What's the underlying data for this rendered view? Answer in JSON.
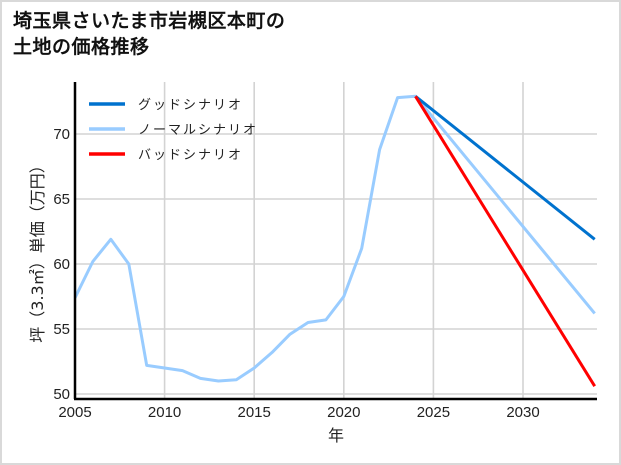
{
  "title": {
    "line1": "埼玉県さいたま市岩槻区本町の",
    "line2": "土地の価格推移"
  },
  "colors": {
    "good": "#0072CE",
    "normal": "#99CCFF",
    "bad": "#FF0000",
    "grid": "#D3D3D3",
    "axis": "#000000"
  },
  "chart_data": {
    "type": "line",
    "title": "埼玉県さいたま市岩槻区本町の土地の価格推移",
    "xlabel": "年",
    "ylabel": "坪（3.3㎡）単価（万円）",
    "xlim": [
      2005,
      2034
    ],
    "ylim": [
      49.6,
      74.5
    ],
    "xticks": [
      2005,
      2010,
      2015,
      2020,
      2025,
      2030
    ],
    "yticks": [
      50,
      55,
      60,
      65,
      70
    ],
    "grid": true,
    "legend_position": "upper left",
    "legend": [
      "グッドシナリオ",
      "ノーマルシナリオ",
      "バッドシナリオ"
    ],
    "series": [
      {
        "name": "ノーマルシナリオ",
        "color": "#99CCFF",
        "x": [
          2005,
          2006,
          2007,
          2008,
          2009,
          2010,
          2011,
          2012,
          2013,
          2014,
          2015,
          2016,
          2017,
          2018,
          2019,
          2020,
          2021,
          2022,
          2023,
          2024,
          2034
        ],
        "values": [
          57.4,
          60.2,
          61.9,
          60.0,
          52.2,
          52.0,
          51.8,
          51.2,
          51.0,
          51.1,
          52.0,
          53.2,
          54.6,
          55.5,
          55.7,
          57.5,
          61.2,
          68.8,
          72.8,
          72.9,
          56.2
        ]
      },
      {
        "name": "グッドシナリオ",
        "color": "#0072CE",
        "x": [
          2024,
          2034
        ],
        "values": [
          72.9,
          61.9
        ]
      },
      {
        "name": "バッドシナリオ",
        "color": "#FF0000",
        "x": [
          2024,
          2034
        ],
        "values": [
          72.9,
          50.6
        ]
      }
    ]
  },
  "legend": {
    "items": [
      {
        "label": "グッドシナリオ",
        "color": "#0072CE"
      },
      {
        "label": "ノーマルシナリオ",
        "color": "#99CCFF"
      },
      {
        "label": "バッドシナリオ",
        "color": "#FF0000"
      }
    ]
  },
  "axes": {
    "xlabel": "年",
    "ylabel": "坪（3.3㎡）単価（万円）",
    "xtick_labels": [
      "2005",
      "2010",
      "2015",
      "2020",
      "2025",
      "2030"
    ],
    "ytick_labels": [
      "50",
      "55",
      "60",
      "65",
      "70"
    ]
  }
}
